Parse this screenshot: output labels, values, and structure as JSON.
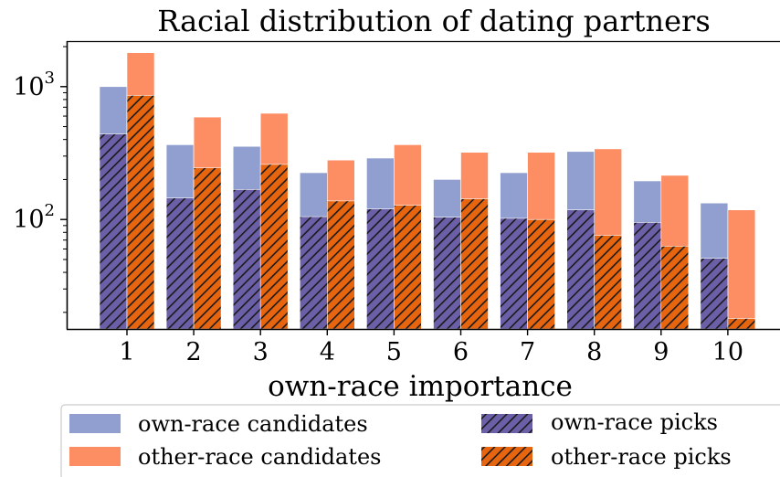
{
  "chart_data": {
    "type": "bar",
    "title": "Racial distribution of dating partners",
    "xlabel": "own-race importance",
    "ylabel": "",
    "yscale": "log",
    "ylim": [
      15,
      2200
    ],
    "yticks": [
      {
        "value": 100,
        "base": "10",
        "exp": "2"
      },
      {
        "value": 1000,
        "base": "10",
        "exp": "3"
      }
    ],
    "categories": [
      "1",
      "2",
      "3",
      "4",
      "5",
      "6",
      "7",
      "8",
      "9",
      "10"
    ],
    "series": [
      {
        "name": "own-race candidates",
        "group": "own-race",
        "kind": "candidates",
        "values": [
          1000,
          365,
          355,
          225,
          290,
          200,
          225,
          325,
          195,
          133
        ]
      },
      {
        "name": "other-race candidates",
        "group": "other-race",
        "kind": "candidates",
        "values": [
          1800,
          590,
          630,
          280,
          365,
          320,
          320,
          340,
          215,
          118
        ]
      },
      {
        "name": "own-race picks",
        "group": "own-race",
        "kind": "picks",
        "values": [
          440,
          145,
          168,
          105,
          120,
          104,
          102,
          118,
          95,
          51
        ]
      },
      {
        "name": "other-race picks",
        "group": "other-race",
        "kind": "picks",
        "values": [
          860,
          245,
          260,
          138,
          128,
          143,
          100,
          76,
          63,
          18
        ]
      }
    ],
    "colors": {
      "own_candidates": "#909fcf",
      "other_candidates": "#fd8d62",
      "own_picks": "#6b5fa8",
      "other_picks": "#e8650f",
      "hatch": "#1a1a1a"
    },
    "legend_position": "below",
    "grid": false
  }
}
